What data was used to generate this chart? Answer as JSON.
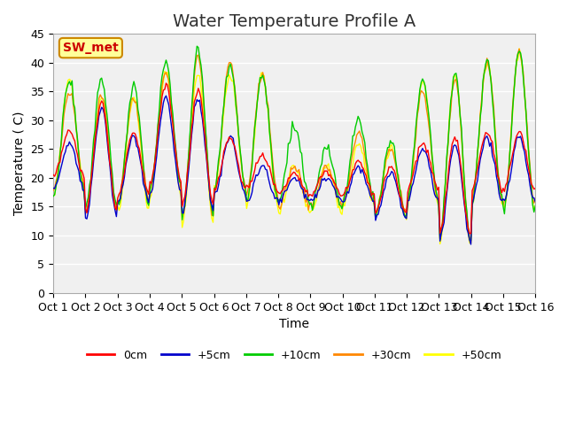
{
  "title": "Water Temperature Profile A",
  "xlabel": "Time",
  "ylabel": "Temperature ( C)",
  "xlim": [
    0,
    15
  ],
  "ylim": [
    0,
    45
  ],
  "yticks": [
    0,
    5,
    10,
    15,
    20,
    25,
    30,
    35,
    40,
    45
  ],
  "xtick_labels": [
    "Oct 1",
    "Oct 2",
    "Oct 3",
    "Oct 4",
    "Oct 5",
    "Oct 6",
    "Oct 7",
    "Oct 8",
    "Oct 9",
    "Oct 10",
    "Oct 11",
    "Oct 12",
    "Oct 13",
    "Oct 14",
    "Oct 15",
    "Oct 16"
  ],
  "colors": {
    "0cm": "#ff0000",
    "+5cm": "#0000cc",
    "+10cm": "#00cc00",
    "+30cm": "#ff8800",
    "+50cm": "#ffff00"
  },
  "peaks_0cm": [
    28,
    33,
    28,
    36,
    35,
    27,
    24,
    21,
    21,
    23,
    22,
    26,
    27,
    28,
    28,
    28
  ],
  "troughs_0cm": [
    20,
    14,
    17,
    19,
    15,
    18,
    18,
    17,
    17,
    17,
    14,
    18,
    10,
    18,
    18,
    18
  ],
  "peaks_5cm": [
    26,
    32,
    27,
    34,
    34,
    27,
    22,
    20,
    20,
    22,
    21,
    25,
    26,
    27,
    27,
    27
  ],
  "troughs_5cm": [
    18,
    13,
    16,
    17,
    14,
    17,
    16,
    16,
    16,
    16,
    13,
    16,
    9,
    16,
    16,
    16
  ],
  "peaks_10cm": [
    37,
    37,
    36,
    40,
    42,
    40,
    38,
    29,
    25,
    30,
    26,
    37,
    38,
    40,
    42,
    42
  ],
  "troughs_10cm": [
    17,
    15,
    15,
    18,
    13,
    18,
    16,
    16,
    15,
    16,
    13,
    16,
    9,
    15,
    14,
    15
  ],
  "peaks_30cm": [
    35,
    34,
    34,
    38,
    41,
    40,
    38,
    22,
    22,
    28,
    25,
    35,
    37,
    40,
    42,
    40
  ],
  "troughs_30cm": [
    18,
    14,
    16,
    18,
    13,
    18,
    17,
    15,
    15,
    16,
    14,
    16,
    9,
    16,
    15,
    16
  ],
  "peaks_50cm": [
    37,
    34,
    34,
    38,
    38,
    38,
    38,
    22,
    22,
    26,
    25,
    37,
    38,
    40,
    42,
    42
  ],
  "troughs_50cm": [
    17,
    14,
    14,
    17,
    12,
    18,
    15,
    14,
    14,
    15,
    13,
    15,
    8,
    15,
    14,
    15
  ],
  "legend_label": "SW_met",
  "legend_box_color": "#ffff99",
  "legend_box_edge": "#cc8800",
  "plot_bg": "#f0f0f0",
  "grid_color": "#ffffff",
  "title_fontsize": 14,
  "axis_fontsize": 10,
  "tick_fontsize": 9
}
